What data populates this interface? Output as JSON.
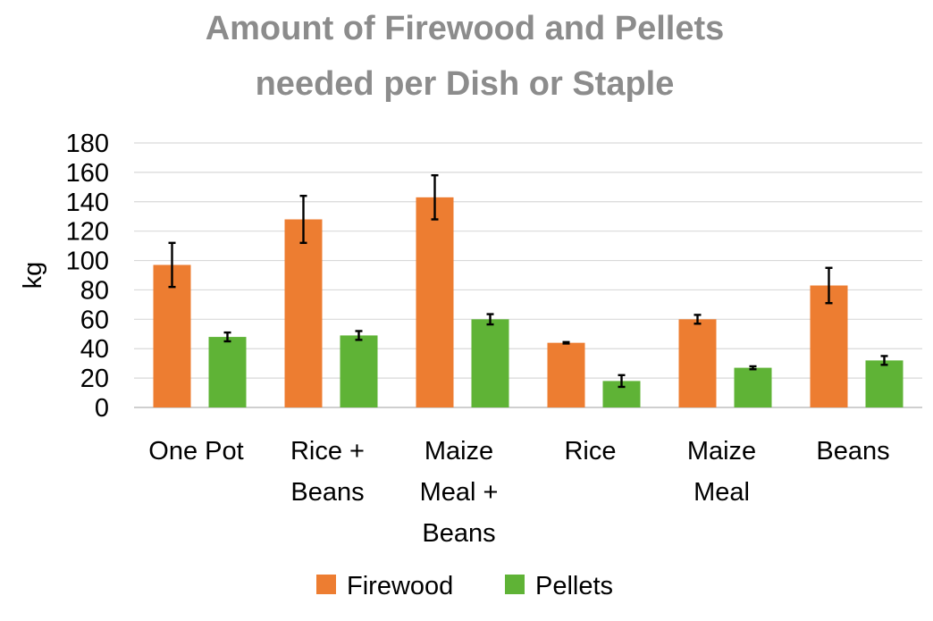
{
  "chart_data": {
    "type": "bar",
    "title_lines": [
      "Amount of Firewood and Pellets",
      "needed per Dish or Staple"
    ],
    "xlabel": "",
    "ylabel": "kg",
    "ylim": [
      0,
      180
    ],
    "yticks": [
      0,
      20,
      40,
      60,
      80,
      100,
      120,
      140,
      160,
      180
    ],
    "grid": true,
    "legend_position": "bottom",
    "categories": [
      [
        "One Pot"
      ],
      [
        "Rice +",
        "Beans"
      ],
      [
        "Maize",
        "Meal +",
        "Beans"
      ],
      [
        "Rice"
      ],
      [
        "Maize",
        "Meal"
      ],
      [
        "Beans"
      ]
    ],
    "series": [
      {
        "name": "Firewood",
        "color": "#ed7d31",
        "values": [
          97,
          128,
          143,
          44,
          60,
          83
        ],
        "error": [
          15,
          16,
          15,
          0.5,
          3,
          12
        ]
      },
      {
        "name": "Pellets",
        "color": "#5fb336",
        "values": [
          48,
          49,
          60,
          18,
          27,
          32
        ],
        "error": [
          3,
          3,
          3.5,
          4,
          1,
          3
        ]
      }
    ]
  }
}
